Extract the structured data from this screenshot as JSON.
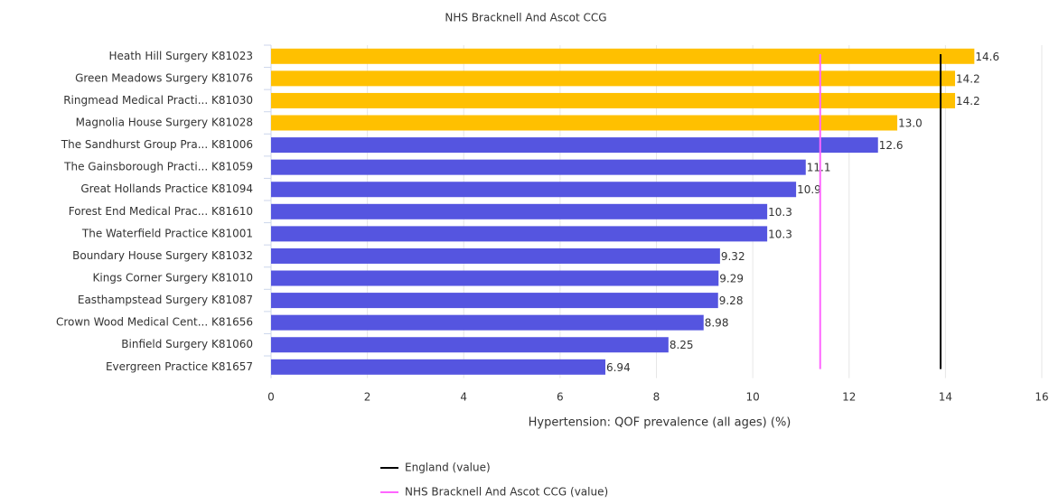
{
  "chart_data": {
    "type": "bar",
    "orientation": "horizontal",
    "title": "NHS Bracknell And Ascot CCG",
    "xlabel": "Hypertension: QOF prevalence (all ages) (%)",
    "categories": [
      "Heath Hill Surgery K81023",
      "Green Meadows Surgery K81076",
      "Ringmead Medical Practi... K81030",
      "Magnolia House Surgery K81028",
      "The Sandhurst Group Pra... K81006",
      "The Gainsborough Practi... K81059",
      "Great Hollands Practice K81094",
      "Forest End Medical Prac... K81610",
      "The Waterfield Practice K81001",
      "Boundary House Surgery K81032",
      "Kings Corner Surgery K81010",
      "Easthampstead Surgery K81087",
      "Crown Wood Medical Cent... K81656",
      "Binfield Surgery K81060",
      "Evergreen Practice K81657"
    ],
    "values": [
      14.6,
      14.2,
      14.2,
      13.0,
      12.6,
      11.1,
      10.9,
      10.3,
      10.3,
      9.32,
      9.29,
      9.28,
      8.98,
      8.25,
      6.94
    ],
    "value_labels": [
      "14.6",
      "14.2",
      "14.2",
      "13.0",
      "12.6",
      "11.1",
      "10.9",
      "10.3",
      "10.3",
      "9.32",
      "9.29",
      "9.28",
      "8.98",
      "8.25",
      "6.94"
    ],
    "colors": [
      "#ffc000",
      "#ffc000",
      "#ffc000",
      "#ffc000",
      "#5555e0",
      "#5555e0",
      "#5555e0",
      "#5555e0",
      "#5555e0",
      "#5555e0",
      "#5555e0",
      "#5555e0",
      "#5555e0",
      "#5555e0",
      "#5555e0"
    ],
    "reference_lines": [
      {
        "name": "England (value)",
        "value": 13.9,
        "color": "#000000"
      },
      {
        "name": "NHS Bracknell And Ascot CCG (value)",
        "value": 11.4,
        "color": "#ff66ff"
      }
    ],
    "xlim": [
      0,
      16
    ],
    "xticks": [
      0,
      2,
      4,
      6,
      8,
      10,
      12,
      14,
      16
    ],
    "grid": true
  }
}
